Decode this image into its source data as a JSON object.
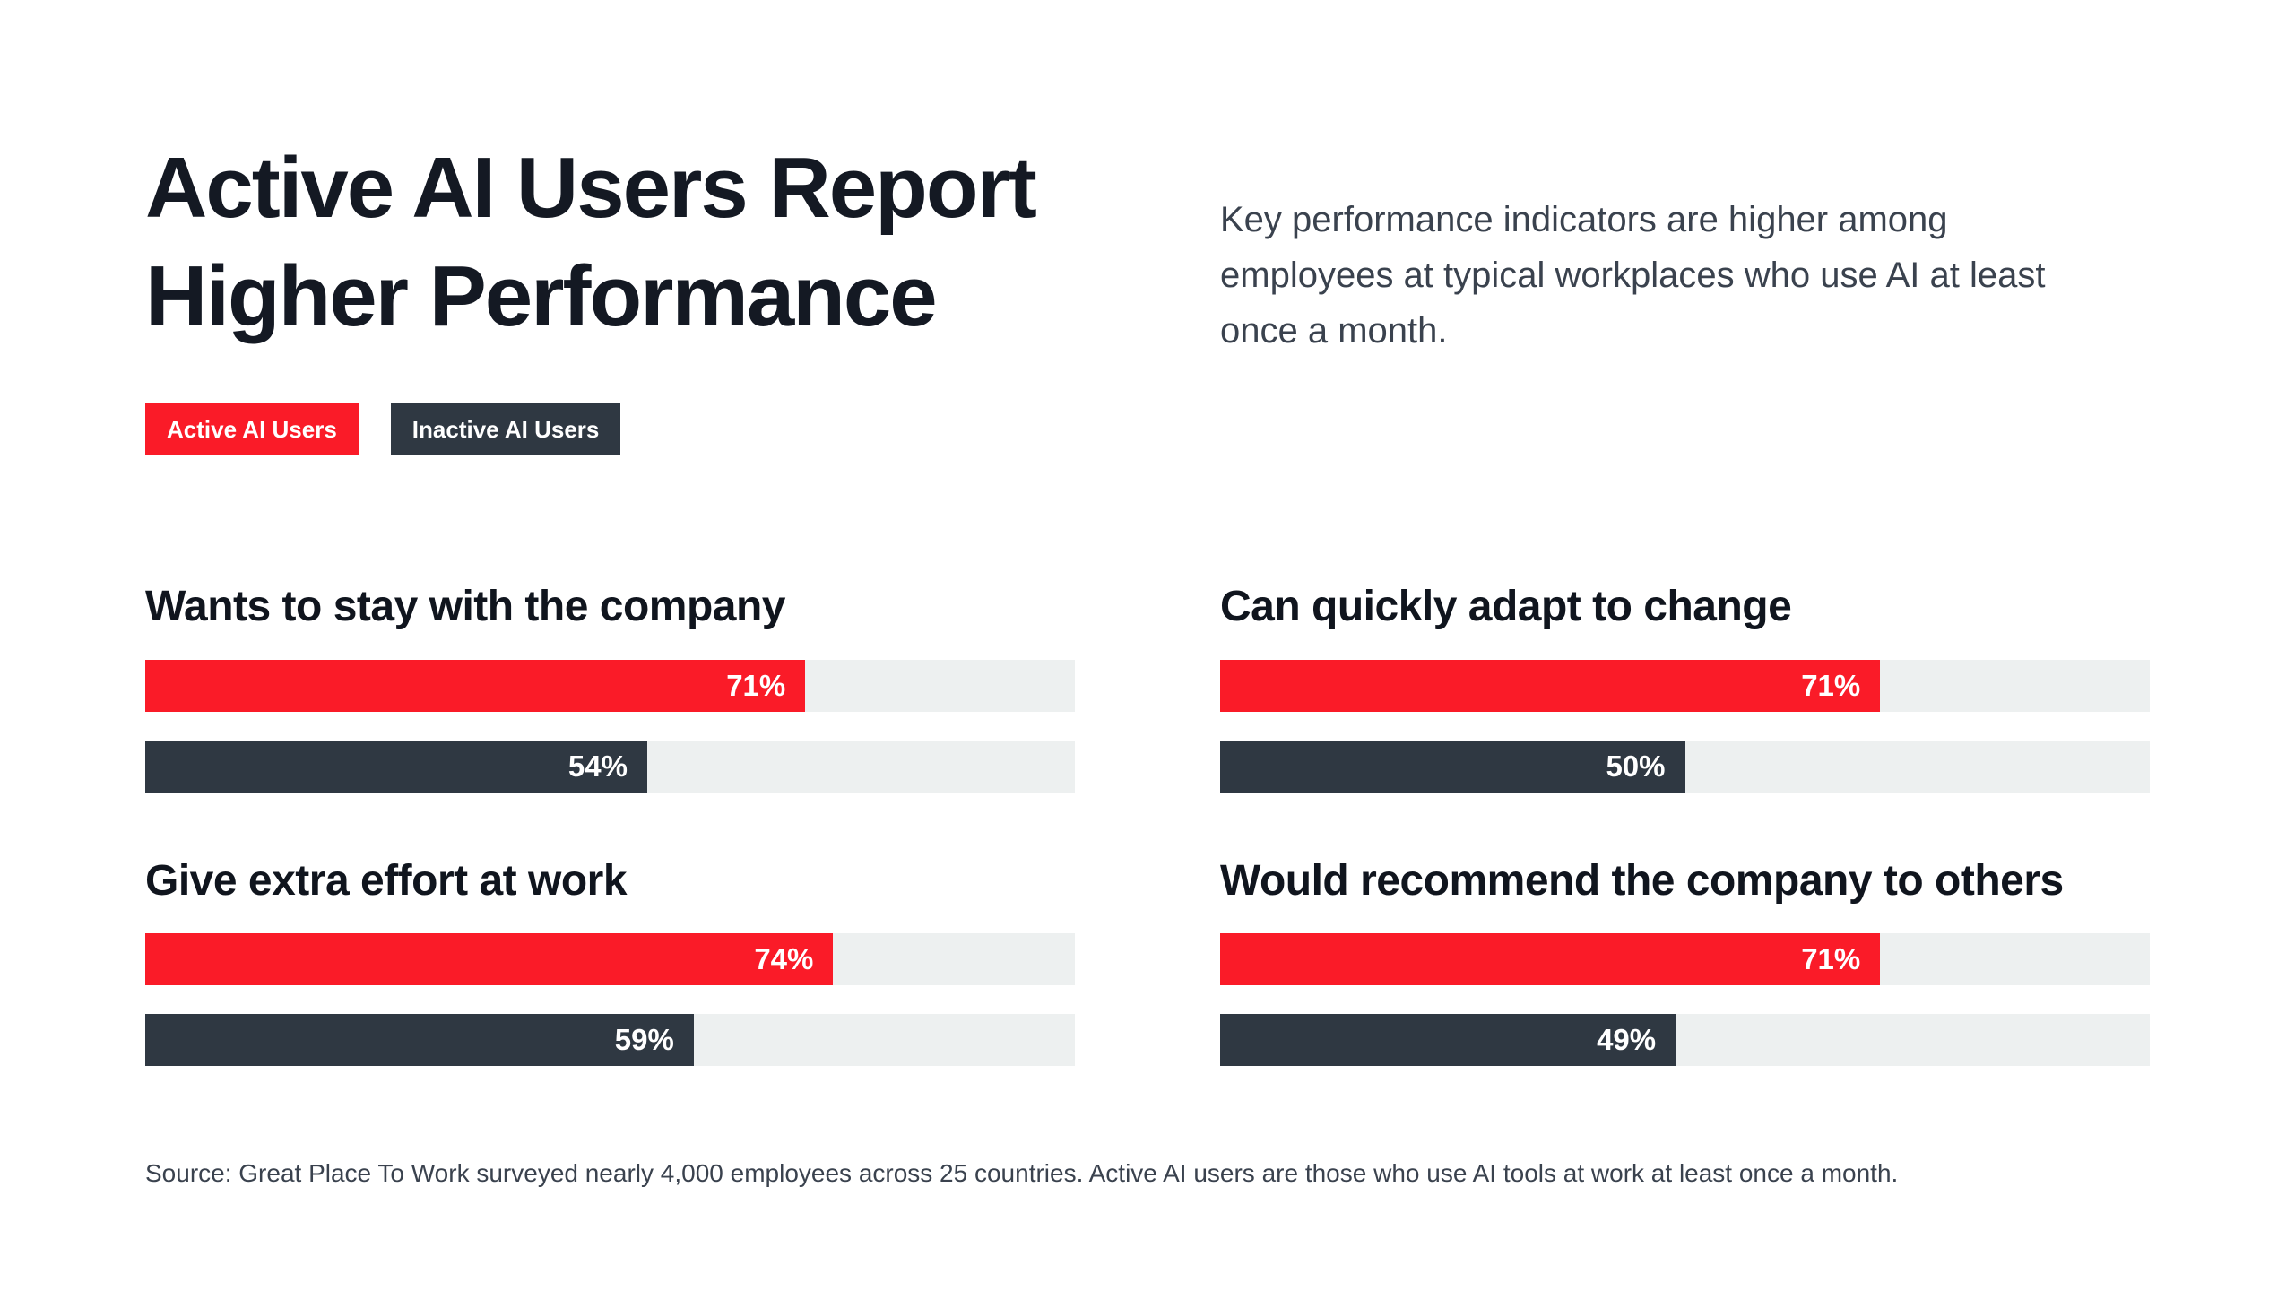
{
  "header": {
    "title_line1": "Active AI Users Report",
    "title_line2": "Higher Performance",
    "subtitle": "Key performance indicators are higher among employees at typical workplaces who use AI at least once a month."
  },
  "legend": {
    "items": [
      {
        "label": "Active AI Users",
        "color": "#fa1b28"
      },
      {
        "label": "Inactive AI Users",
        "color": "#2f3842"
      }
    ]
  },
  "chart_data": {
    "type": "bar",
    "orientation": "horizontal",
    "value_unit": "%",
    "xlim": [
      0,
      100
    ],
    "grid": false,
    "legend_position": "top-left",
    "series_names": [
      "Active AI Users",
      "Inactive AI Users"
    ],
    "colors": {
      "active": "#fa1b28",
      "inactive": "#2f3842",
      "track": "#edf0f0",
      "title_text": "#141923",
      "body_text": "#3a424e"
    },
    "groups": [
      {
        "label": "Wants to stay with the company",
        "values": {
          "active": 71,
          "inactive": 54
        }
      },
      {
        "label": "Can quickly adapt to change",
        "values": {
          "active": 71,
          "inactive": 50
        }
      },
      {
        "label": "Give extra effort at work",
        "values": {
          "active": 74,
          "inactive": 59
        }
      },
      {
        "label": "Would recommend the company to others",
        "values": {
          "active": 71,
          "inactive": 49
        }
      }
    ]
  },
  "footer": {
    "source": "Source: Great Place To Work surveyed nearly 4,000 employees across 25 countries. Active AI users are those who use AI tools at work at least once a month."
  }
}
